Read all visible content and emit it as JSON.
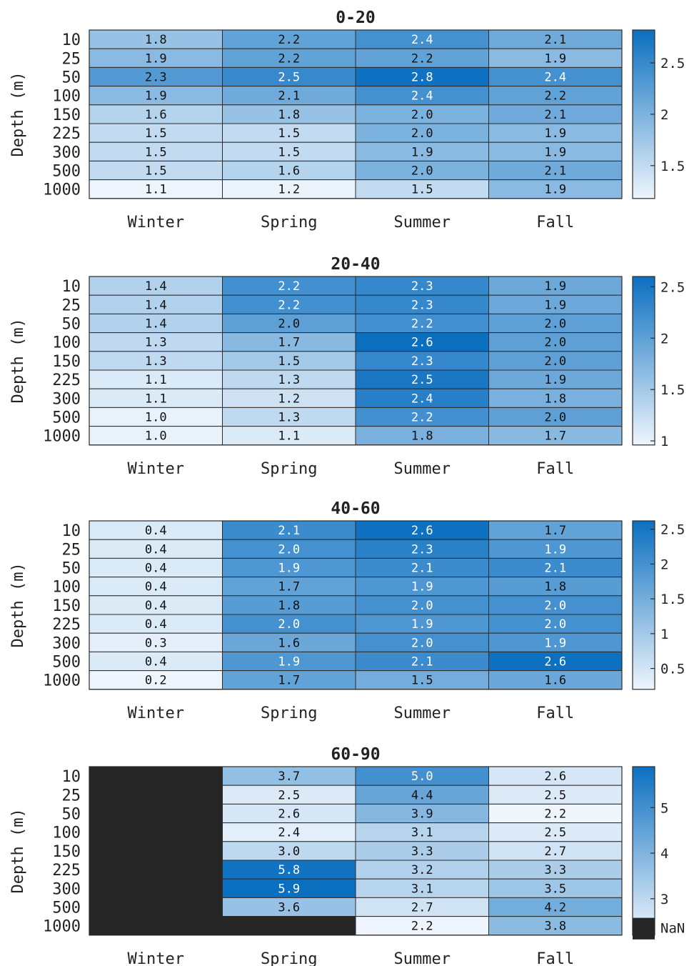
{
  "chart_data": [
    {
      "type": "heatmap",
      "title": "0-20",
      "ylabel": "Depth (m)",
      "rows": [
        "10",
        "25",
        "50",
        "100",
        "150",
        "225",
        "300",
        "500",
        "1000"
      ],
      "columns": [
        "Winter",
        "Spring",
        "Summer",
        "Fall"
      ],
      "values": [
        [
          1.8,
          2.2,
          2.4,
          2.1
        ],
        [
          1.9,
          2.2,
          2.2,
          1.9
        ],
        [
          2.3,
          2.5,
          2.8,
          2.4
        ],
        [
          1.9,
          2.1,
          2.4,
          2.2
        ],
        [
          1.6,
          1.8,
          2.0,
          2.1
        ],
        [
          1.5,
          1.5,
          2.0,
          1.9
        ],
        [
          1.5,
          1.5,
          1.9,
          1.9
        ],
        [
          1.5,
          1.6,
          2.0,
          2.1
        ],
        [
          1.1,
          1.2,
          1.5,
          1.9
        ]
      ],
      "value_labels": [
        [
          "1.8",
          "2.2",
          "2.4",
          "2.1"
        ],
        [
          "1.9",
          "2.2",
          "2.2",
          "1.9"
        ],
        [
          "2.3",
          "2.5",
          "2.8",
          "2.4"
        ],
        [
          "1.9",
          "2.1",
          "2.4",
          "2.2"
        ],
        [
          "1.6",
          "1.8",
          "2.0",
          "2.1"
        ],
        [
          "1.5",
          "1.5",
          "2.0",
          "1.9"
        ],
        [
          "1.5",
          "1.5",
          "1.9",
          "1.9"
        ],
        [
          "1.5",
          "1.6",
          "2.0",
          "2.1"
        ],
        [
          "1.1",
          "1.2",
          "1.5",
          "1.9"
        ]
      ],
      "colorbar": {
        "range": [
          1.18,
          2.82
        ],
        "ticks": [
          1.5,
          2,
          2.5
        ],
        "tick_labels": [
          "1.5",
          "2",
          "2.5"
        ]
      },
      "nan_legend": null
    },
    {
      "type": "heatmap",
      "title": "20-40",
      "ylabel": "Depth (m)",
      "rows": [
        "10",
        "25",
        "50",
        "100",
        "150",
        "225",
        "300",
        "500",
        "1000"
      ],
      "columns": [
        "Winter",
        "Spring",
        "Summer",
        "Fall"
      ],
      "values": [
        [
          1.4,
          2.2,
          2.3,
          1.9
        ],
        [
          1.4,
          2.2,
          2.3,
          1.9
        ],
        [
          1.4,
          2.0,
          2.2,
          2.0
        ],
        [
          1.3,
          1.7,
          2.6,
          2.0
        ],
        [
          1.3,
          1.5,
          2.3,
          2.0
        ],
        [
          1.1,
          1.3,
          2.5,
          1.9
        ],
        [
          1.1,
          1.2,
          2.4,
          1.8
        ],
        [
          1.0,
          1.3,
          2.2,
          2.0
        ],
        [
          1.0,
          1.1,
          1.8,
          1.7
        ]
      ],
      "value_labels": [
        [
          "1.4",
          "2.2",
          "2.3",
          "1.9"
        ],
        [
          "1.4",
          "2.2",
          "2.3",
          "1.9"
        ],
        [
          "1.4",
          "2.0",
          "2.2",
          "2.0"
        ],
        [
          "1.3",
          "1.7",
          "2.6",
          "2.0"
        ],
        [
          "1.3",
          "1.5",
          "2.3",
          "2.0"
        ],
        [
          "1.1",
          "1.3",
          "2.5",
          "1.9"
        ],
        [
          "1.1",
          "1.2",
          "2.4",
          "1.8"
        ],
        [
          "1.0",
          "1.3",
          "2.2",
          "2.0"
        ],
        [
          "1.0",
          "1.1",
          "1.8",
          "1.7"
        ]
      ],
      "colorbar": {
        "range": [
          0.96,
          2.6
        ],
        "ticks": [
          1,
          1.5,
          2,
          2.5
        ],
        "tick_labels": [
          "1",
          "1.5",
          "2",
          "2.5"
        ]
      },
      "nan_legend": null
    },
    {
      "type": "heatmap",
      "title": "40-60",
      "ylabel": "Depth (m)",
      "rows": [
        "10",
        "25",
        "50",
        "100",
        "150",
        "225",
        "300",
        "500",
        "1000"
      ],
      "columns": [
        "Winter",
        "Spring",
        "Summer",
        "Fall"
      ],
      "values": [
        [
          0.4,
          2.1,
          2.6,
          1.7
        ],
        [
          0.4,
          2.0,
          2.3,
          1.9
        ],
        [
          0.4,
          1.9,
          2.1,
          2.1
        ],
        [
          0.4,
          1.7,
          1.9,
          1.8
        ],
        [
          0.4,
          1.8,
          2.0,
          2.0
        ],
        [
          0.4,
          2.0,
          1.9,
          2.0
        ],
        [
          0.3,
          1.6,
          2.0,
          1.9
        ],
        [
          0.4,
          1.9,
          2.1,
          2.6
        ],
        [
          0.2,
          1.7,
          1.5,
          1.6
        ]
      ],
      "value_labels": [
        [
          "0.4",
          "2.1",
          "2.6",
          "1.7"
        ],
        [
          "0.4",
          "2.0",
          "2.3",
          "1.9"
        ],
        [
          "0.4",
          "1.9",
          "2.1",
          "2.1"
        ],
        [
          "0.4",
          "1.7",
          "1.9",
          "1.8"
        ],
        [
          "0.4",
          "1.8",
          "2.0",
          "2.0"
        ],
        [
          "0.4",
          "2.0",
          "1.9",
          "2.0"
        ],
        [
          "0.3",
          "1.6",
          "2.0",
          "1.9"
        ],
        [
          "0.4",
          "1.9",
          "2.1",
          "2.6"
        ],
        [
          "0.2",
          "1.7",
          "1.5",
          "1.6"
        ]
      ],
      "colorbar": {
        "range": [
          0.2,
          2.62
        ],
        "ticks": [
          0.5,
          1,
          1.5,
          2,
          2.5
        ],
        "tick_labels": [
          "0.5",
          "1",
          "1.5",
          "2",
          "2.5"
        ]
      },
      "nan_legend": null
    },
    {
      "type": "heatmap",
      "title": "60-90",
      "ylabel": "Depth (m)",
      "rows": [
        "10",
        "25",
        "50",
        "100",
        "150",
        "225",
        "300",
        "500",
        "1000"
      ],
      "columns": [
        "Winter",
        "Spring",
        "Summer",
        "Fall"
      ],
      "values": [
        [
          null,
          3.7,
          5.0,
          2.6
        ],
        [
          null,
          2.5,
          4.4,
          2.5
        ],
        [
          null,
          2.6,
          3.9,
          2.2
        ],
        [
          null,
          2.4,
          3.1,
          2.5
        ],
        [
          null,
          3.0,
          3.3,
          2.7
        ],
        [
          null,
          5.8,
          3.2,
          3.3
        ],
        [
          null,
          5.9,
          3.1,
          3.5
        ],
        [
          null,
          3.6,
          2.7,
          4.2
        ],
        [
          null,
          null,
          2.2,
          3.8
        ]
      ],
      "value_labels": [
        [
          "",
          "3.7",
          "5.0",
          "2.6"
        ],
        [
          "",
          "2.5",
          "4.4",
          "2.5"
        ],
        [
          "",
          "2.6",
          "3.9",
          "2.2"
        ],
        [
          "",
          "2.4",
          "3.1",
          "2.5"
        ],
        [
          "",
          "3.0",
          "3.3",
          "2.7"
        ],
        [
          "",
          "5.8",
          "3.2",
          "3.3"
        ],
        [
          "",
          "5.9",
          "3.1",
          "3.5"
        ],
        [
          "",
          "3.6",
          "2.7",
          "4.2"
        ],
        [
          "",
          "",
          "2.2",
          "3.8"
        ]
      ],
      "colorbar": {
        "range": [
          2.2,
          5.9
        ],
        "ticks": [
          3,
          4,
          5
        ],
        "tick_labels": [
          "3",
          "4",
          "5"
        ]
      },
      "nan_legend": "NaN"
    }
  ],
  "colormap": {
    "low": "#eef5fc",
    "high": "#0b6fc0",
    "nan": "#262626",
    "grid": "#2b2b2b",
    "text_dark": "#111111",
    "text_light": "#ffffff"
  }
}
